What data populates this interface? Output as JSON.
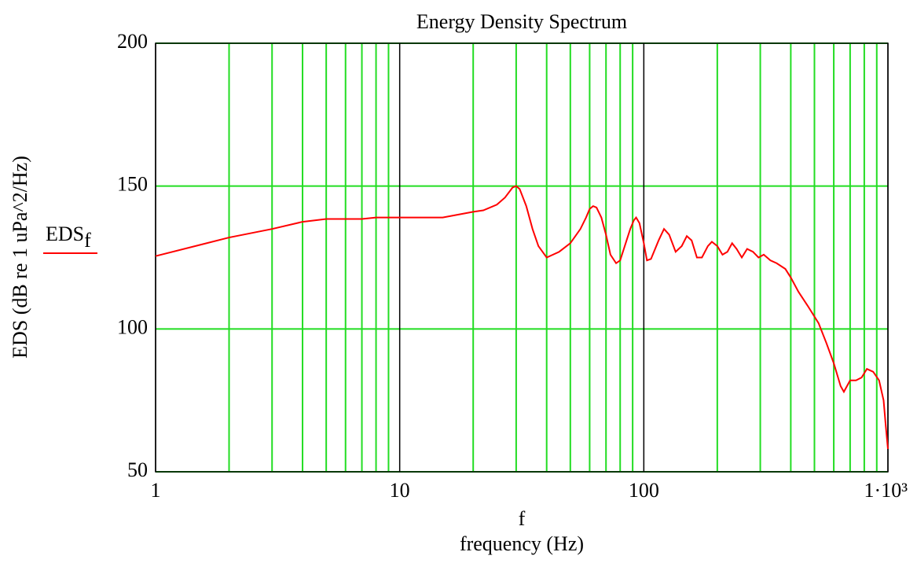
{
  "chart_data": {
    "type": "line",
    "title": "Energy Density Spectrum",
    "x_label": "f",
    "x_sublabel": "frequency (Hz)",
    "y_label": "EDS (dB re 1 uPa^2/Hz)",
    "x_scale": "log",
    "grid": true,
    "legend": "left",
    "xlim": [
      1,
      1000
    ],
    "xticks": [
      1,
      10,
      100,
      {
        "value": 1000,
        "label": "1·10³"
      }
    ],
    "xminorticks": [
      2,
      3,
      4,
      5,
      6,
      7,
      8,
      9,
      20,
      30,
      40,
      50,
      60,
      70,
      80,
      90,
      200,
      300,
      400,
      500,
      600,
      700,
      800,
      900
    ],
    "ylim": [
      50,
      200
    ],
    "yticks": [
      50,
      100,
      150,
      200
    ],
    "x": [
      1,
      2,
      3,
      4,
      5,
      7,
      8,
      10,
      15,
      20,
      22,
      25,
      27,
      29,
      30,
      31,
      33,
      35,
      37,
      40,
      45,
      50,
      55,
      58,
      60,
      62,
      64,
      67,
      70,
      73,
      77,
      80,
      85,
      88,
      91,
      93,
      96,
      100,
      103,
      107,
      115,
      121,
      127,
      135,
      143,
      150,
      157,
      165,
      173,
      183,
      190,
      200,
      210,
      220,
      230,
      240,
      252,
      265,
      280,
      295,
      310,
      330,
      350,
      380,
      400,
      430,
      470,
      520,
      560,
      600,
      640,
      660,
      700,
      740,
      780,
      820,
      870,
      920,
      960,
      980,
      1000
    ],
    "series": [
      {
        "name": "EDSf",
        "color": "#ff0000",
        "values": [
          125.5,
          132,
          135,
          137.5,
          138.5,
          138.5,
          139,
          139,
          139,
          141,
          141.5,
          143.5,
          146,
          149.5,
          150,
          149,
          143,
          135,
          129,
          125,
          127,
          130,
          135,
          139,
          142,
          143,
          142.5,
          139,
          133,
          126,
          123,
          124,
          131,
          135,
          138,
          139,
          137,
          130,
          124,
          124.5,
          131,
          135,
          133,
          127,
          129,
          132.5,
          131,
          125,
          125,
          129,
          130.5,
          129,
          126,
          127,
          130,
          128,
          125,
          128,
          127,
          125,
          126,
          124,
          123,
          121,
          118,
          113,
          108,
          102,
          95,
          88,
          80,
          78,
          82,
          82,
          83,
          86,
          85,
          82,
          75,
          66,
          58
        ]
      }
    ]
  }
}
